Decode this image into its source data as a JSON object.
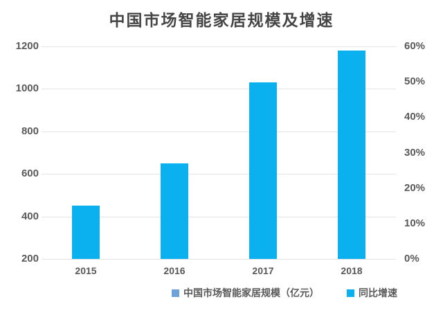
{
  "chart_data": {
    "type": "bar",
    "title": "中国市场智能家居规模及增速",
    "categories": [
      "2015",
      "2016",
      "2017",
      "2018"
    ],
    "values": [
      450,
      650,
      1030,
      1180
    ],
    "bar_color": "#0ab1ee",
    "left_axis": {
      "min": 200,
      "max": 1200,
      "ticks_top_to_bottom": [
        "1200",
        "1000",
        "800",
        "600",
        "400",
        "200"
      ]
    },
    "right_axis": {
      "min": 0,
      "max": 60,
      "ticks_top_to_bottom": [
        "60%",
        "50%",
        "40%",
        "30%",
        "20%",
        "10%",
        "0%"
      ]
    },
    "grid": true,
    "gridline_color": "#e3e3e3",
    "legend_position": "bottom",
    "legend": [
      {
        "label": "中国市场智能家居规模（亿元）",
        "color": "#6ea2d8"
      },
      {
        "label": "同比增速",
        "color": "#0ab1ee"
      }
    ]
  }
}
